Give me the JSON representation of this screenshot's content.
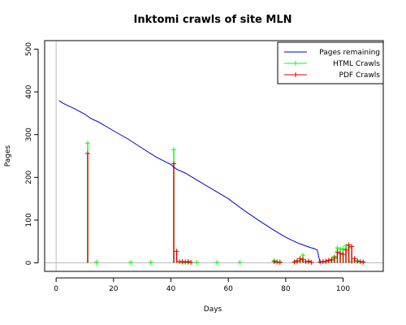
{
  "chart_data": {
    "type": "line",
    "title": "Inktomi crawls of site MLN",
    "xlabel": "Days",
    "ylabel": "Pages",
    "xlim": [
      -4,
      114
    ],
    "ylim": [
      -20,
      520
    ],
    "x_ticks": [
      0,
      20,
      40,
      60,
      80,
      100
    ],
    "y_ticks": [
      0,
      100,
      200,
      300,
      400,
      500
    ],
    "grid": false,
    "legend_position": "top-right",
    "series": [
      {
        "name": "Pages remaining",
        "color": "#0000cc",
        "style": "line",
        "x": [
          1,
          2,
          4,
          6,
          8,
          10,
          11,
          12,
          15,
          20,
          25,
          30,
          35,
          40,
          41,
          42,
          45,
          50,
          55,
          60,
          65,
          70,
          75,
          80,
          84,
          86,
          88,
          89,
          90,
          91,
          92
        ],
        "y": [
          380,
          375,
          368,
          362,
          355,
          348,
          343,
          338,
          329,
          309,
          290,
          268,
          247,
          230,
          224,
          219,
          210,
          190,
          170,
          150,
          125,
          102,
          80,
          60,
          47,
          42,
          37,
          35,
          33,
          30,
          0
        ]
      },
      {
        "name": "HTML Crawls",
        "color": "#00ff00",
        "style": "spikes",
        "marker": "+",
        "x": [
          11,
          14,
          26,
          33,
          41,
          44,
          46,
          49,
          56,
          64,
          76,
          78,
          84,
          85,
          86,
          88,
          94,
          96,
          97,
          98,
          99,
          100,
          101,
          102,
          103,
          105,
          107
        ],
        "y": [
          280,
          1,
          1,
          1,
          265,
          1,
          1,
          1,
          1,
          1,
          5,
          2,
          3,
          4,
          18,
          3,
          3,
          5,
          15,
          35,
          32,
          33,
          40,
          35,
          3,
          5,
          2
        ]
      },
      {
        "name": "PDF Crawls",
        "color": "#dd0000",
        "style": "spikes",
        "marker": "+",
        "x": [
          11,
          41,
          42,
          43,
          44,
          45,
          46,
          47,
          76,
          77,
          78,
          83,
          84,
          85,
          86,
          87,
          88,
          89,
          92,
          93,
          94,
          95,
          96,
          97,
          98,
          99,
          100,
          101,
          102,
          103,
          104,
          105,
          106,
          107
        ],
        "y": [
          256,
          232,
          27,
          3,
          3,
          2,
          3,
          1,
          3,
          2,
          1,
          2,
          5,
          10,
          8,
          3,
          4,
          1,
          2,
          3,
          4,
          6,
          8,
          12,
          25,
          22,
          20,
          30,
          42,
          38,
          10,
          4,
          3,
          2
        ]
      }
    ]
  }
}
